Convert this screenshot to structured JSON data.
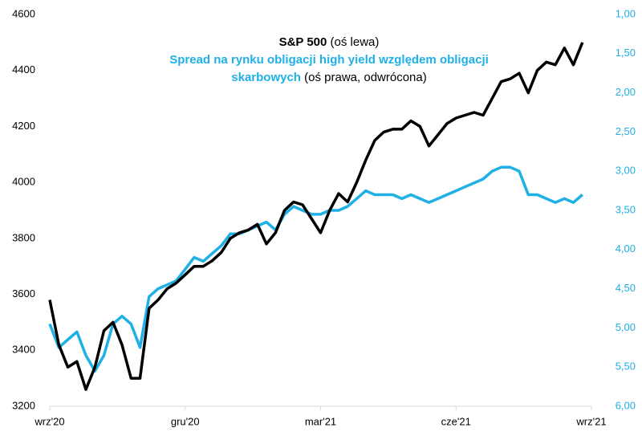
{
  "chart_data": {
    "type": "line",
    "annotations": [
      "(oś lewa)",
      "(oś prawa, odwrócona)"
    ],
    "x": [
      0,
      0.2,
      0.4,
      0.6,
      0.8,
      1.0,
      1.2,
      1.4,
      1.6,
      1.8,
      2.0,
      2.2,
      2.4,
      2.6,
      2.8,
      3.0,
      3.2,
      3.4,
      3.6,
      3.8,
      4.0,
      4.2,
      4.4,
      4.6,
      4.8,
      5.0,
      5.2,
      5.4,
      5.6,
      5.8,
      6.0,
      6.2,
      6.4,
      6.6,
      6.8,
      7.0,
      7.2,
      7.4,
      7.6,
      7.8,
      8.0,
      8.2,
      8.4,
      8.6,
      8.8,
      9.0,
      9.2,
      9.4,
      9.6,
      9.8,
      10.0,
      10.2,
      10.4,
      10.6,
      10.8,
      11.0,
      11.2,
      11.4,
      11.6,
      11.8
    ],
    "series": [
      {
        "name": "S&P 500",
        "color": "#000000",
        "values": [
          3580,
          3420,
          3340,
          3360,
          3260,
          3340,
          3470,
          3500,
          3420,
          3300,
          3300,
          3550,
          3580,
          3620,
          3640,
          3670,
          3700,
          3700,
          3720,
          3750,
          3800,
          3820,
          3830,
          3850,
          3780,
          3820,
          3900,
          3930,
          3920,
          3870,
          3820,
          3900,
          3960,
          3930,
          4000,
          4080,
          4150,
          4180,
          4190,
          4190,
          4220,
          4200,
          4130,
          4170,
          4210,
          4230,
          4240,
          4250,
          4240,
          4300,
          4360,
          4370,
          4390,
          4320,
          4400,
          4430,
          4420,
          4480,
          4420,
          4500
        ]
      },
      {
        "name": "Spread na rynku obligacji high yield względem obligacji skarbowych",
        "color": "#1fb0e6",
        "axis": "y2",
        "values": [
          4.95,
          5.25,
          5.15,
          5.05,
          5.35,
          5.55,
          5.35,
          4.95,
          4.85,
          4.95,
          5.25,
          4.6,
          4.5,
          4.45,
          4.4,
          4.25,
          4.1,
          4.15,
          4.05,
          3.95,
          3.8,
          3.8,
          3.75,
          3.7,
          3.65,
          3.75,
          3.55,
          3.45,
          3.5,
          3.55,
          3.55,
          3.5,
          3.5,
          3.45,
          3.35,
          3.25,
          3.3,
          3.3,
          3.3,
          3.35,
          3.3,
          3.35,
          3.4,
          3.35,
          3.3,
          3.25,
          3.2,
          3.15,
          3.1,
          3.0,
          2.95,
          2.95,
          3.0,
          3.3,
          3.3,
          3.35,
          3.4,
          3.35,
          3.4,
          3.3
        ]
      }
    ],
    "xlim": [
      0,
      12
    ],
    "xticks": [
      {
        "value": 0,
        "label": "wrz'20"
      },
      {
        "value": 3,
        "label": "gru'20"
      },
      {
        "value": 6,
        "label": "mar'21"
      },
      {
        "value": 9,
        "label": "cze'21"
      },
      {
        "value": 12,
        "label": "wrz'21"
      }
    ],
    "ylim": [
      3200,
      4600
    ],
    "yticks": [
      3200,
      3400,
      3600,
      3800,
      4000,
      4200,
      4400,
      4600
    ],
    "y2lim": [
      6,
      1
    ],
    "y2ticks": [
      {
        "value": 1,
        "label": "1,00"
      },
      {
        "value": 1.5,
        "label": "1,50"
      },
      {
        "value": 2,
        "label": "2,00"
      },
      {
        "value": 2.5,
        "label": "2,50"
      },
      {
        "value": 3,
        "label": "3,00"
      },
      {
        "value": 3.5,
        "label": "3,50"
      },
      {
        "value": 4,
        "label": "4,00"
      },
      {
        "value": 4.5,
        "label": "4,50"
      },
      {
        "value": 5,
        "label": "5,00"
      },
      {
        "value": 5.5,
        "label": "5,50"
      },
      {
        "value": 6,
        "label": "6,00"
      }
    ],
    "grid": false
  }
}
